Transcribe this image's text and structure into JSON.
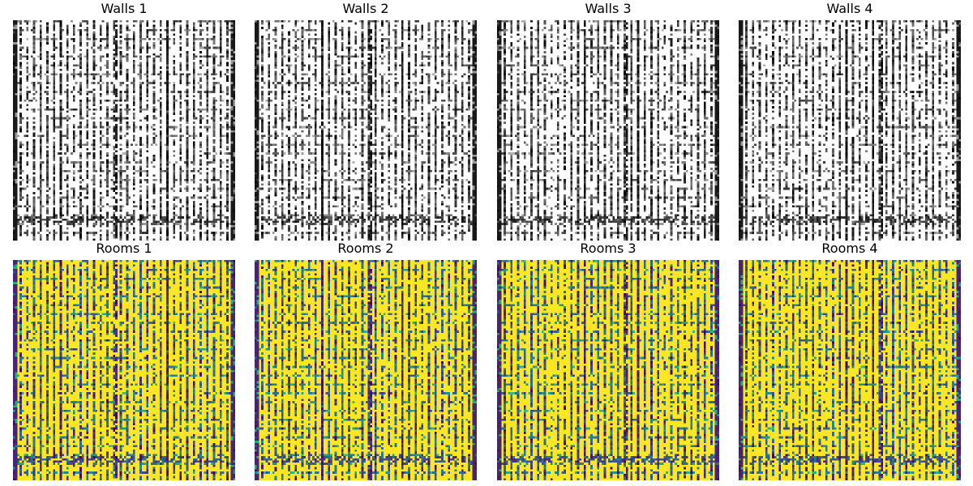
{
  "chart_data": {
    "type": "heatmap",
    "grid": {
      "rows": 2,
      "cols": 4
    },
    "panels": [
      {
        "title": "Walls 1",
        "colormap": "gray",
        "variant": 1
      },
      {
        "title": "Walls 2",
        "colormap": "gray",
        "variant": 2
      },
      {
        "title": "Walls 3",
        "colormap": "gray",
        "variant": 3
      },
      {
        "title": "Walls 4",
        "colormap": "gray",
        "variant": 4
      },
      {
        "title": "Rooms 1",
        "colormap": "viridis",
        "variant": 1
      },
      {
        "title": "Rooms 2",
        "colormap": "viridis",
        "variant": 2
      },
      {
        "title": "Rooms 3",
        "colormap": "viridis",
        "variant": 3
      },
      {
        "title": "Rooms 4",
        "colormap": "viridis",
        "variant": 4
      }
    ],
    "cells": 100,
    "colors": {
      "gray_low": "#000000",
      "gray_high": "#ffffff",
      "viridis_low": "#440154",
      "viridis_mid": "#21918c",
      "viridis_high": "#fde725"
    },
    "axes_visible": false
  }
}
